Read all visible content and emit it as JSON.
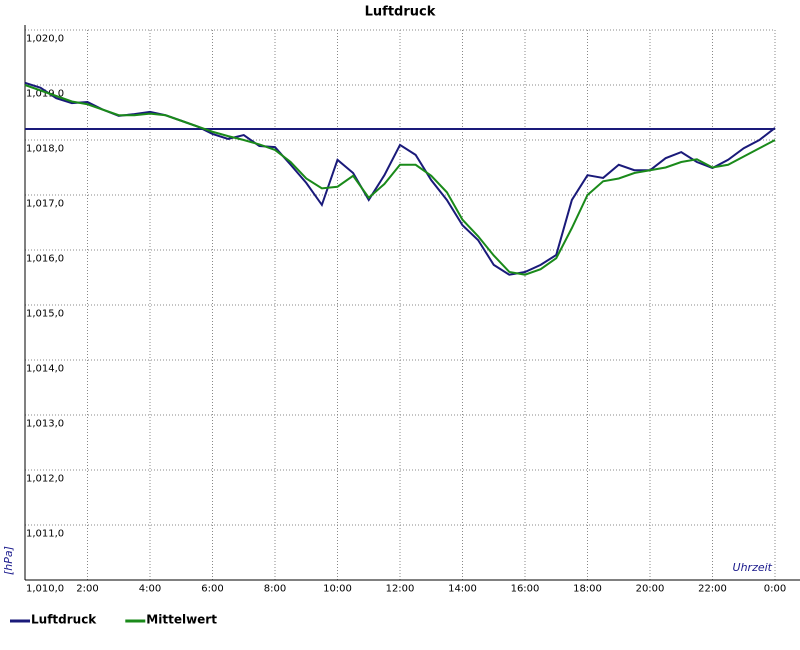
{
  "chart_data": {
    "type": "line",
    "title": "Luftdruck",
    "x_label": "Uhrzeit",
    "y_label": "[hPa]",
    "x": [
      0,
      0.5,
      1,
      1.5,
      2,
      2.5,
      3,
      3.5,
      4,
      4.5,
      5,
      5.5,
      6,
      6.5,
      7,
      7.5,
      8,
      8.5,
      9,
      9.5,
      10,
      10.5,
      11,
      11.5,
      12,
      12.5,
      13,
      13.5,
      14,
      14.5,
      15,
      15.5,
      16,
      16.5,
      17,
      17.5,
      18,
      18.5,
      19,
      19.5,
      20,
      20.5,
      21,
      21.5,
      22,
      22.5,
      23,
      23.5,
      24
    ],
    "series": [
      {
        "name": "Luftdruck",
        "color": "#1a1a7a",
        "values": [
          1019.04,
          1018.95,
          1018.76,
          1018.67,
          1018.69,
          1018.55,
          1018.44,
          1018.47,
          1018.51,
          1018.45,
          1018.35,
          1018.25,
          1018.11,
          1018.02,
          1018.09,
          1017.89,
          1017.87,
          1017.55,
          1017.22,
          1016.82,
          1017.64,
          1017.4,
          1016.91,
          1017.36,
          1017.91,
          1017.73,
          1017.27,
          1016.91,
          1016.45,
          1016.18,
          1015.73,
          1015.55,
          1015.6,
          1015.73,
          1015.91,
          1016.91,
          1017.36,
          1017.31,
          1017.55,
          1017.45,
          1017.45,
          1017.67,
          1017.78,
          1017.6,
          1017.49,
          1017.64,
          1017.85,
          1018.0,
          1018.22
        ]
      },
      {
        "name": "Mittelwert",
        "color": "#1a8a1a",
        "values": [
          1019.0,
          1018.9,
          1018.8,
          1018.7,
          1018.65,
          1018.55,
          1018.45,
          1018.45,
          1018.48,
          1018.45,
          1018.35,
          1018.25,
          1018.15,
          1018.07,
          1018.0,
          1017.92,
          1017.82,
          1017.6,
          1017.3,
          1017.12,
          1017.15,
          1017.35,
          1016.95,
          1017.2,
          1017.55,
          1017.55,
          1017.35,
          1017.05,
          1016.55,
          1016.25,
          1015.9,
          1015.6,
          1015.55,
          1015.65,
          1015.85,
          1016.4,
          1017.0,
          1017.25,
          1017.3,
          1017.4,
          1017.45,
          1017.5,
          1017.6,
          1017.65,
          1017.5,
          1017.55,
          1017.7,
          1017.85,
          1018.0
        ]
      }
    ],
    "reference_line": {
      "value": 1018.2,
      "color": "#1a1a7a"
    },
    "xlim": [
      0,
      24
    ],
    "xticks": [
      {
        "value": 2,
        "label": "2:00"
      },
      {
        "value": 4,
        "label": "4:00"
      },
      {
        "value": 6,
        "label": "6:00"
      },
      {
        "value": 8,
        "label": "8:00"
      },
      {
        "value": 10,
        "label": "10:00"
      },
      {
        "value": 12,
        "label": "12:00"
      },
      {
        "value": 14,
        "label": "14:00"
      },
      {
        "value": 16,
        "label": "16:00"
      },
      {
        "value": 18,
        "label": "18:00"
      },
      {
        "value": 20,
        "label": "20:00"
      },
      {
        "value": 22,
        "label": "22:00"
      },
      {
        "value": 24,
        "label": "0:00"
      }
    ],
    "ylim": [
      1010,
      1020
    ],
    "yticks": [
      {
        "value": 1010,
        "label": "1,010,0"
      },
      {
        "value": 1011,
        "label": "1,011,0"
      },
      {
        "value": 1012,
        "label": "1,012,0"
      },
      {
        "value": 1013,
        "label": "1,013,0"
      },
      {
        "value": 1014,
        "label": "1,014,0"
      },
      {
        "value": 1015,
        "label": "1,015,0"
      },
      {
        "value": 1016,
        "label": "1,016,0"
      },
      {
        "value": 1017,
        "label": "1,017,0"
      },
      {
        "value": 1018,
        "label": "1,018,0"
      },
      {
        "value": 1019,
        "label": "1,019,0"
      },
      {
        "value": 1020,
        "label": "1,020,0"
      }
    ],
    "grid": true,
    "legend": "bottom"
  }
}
